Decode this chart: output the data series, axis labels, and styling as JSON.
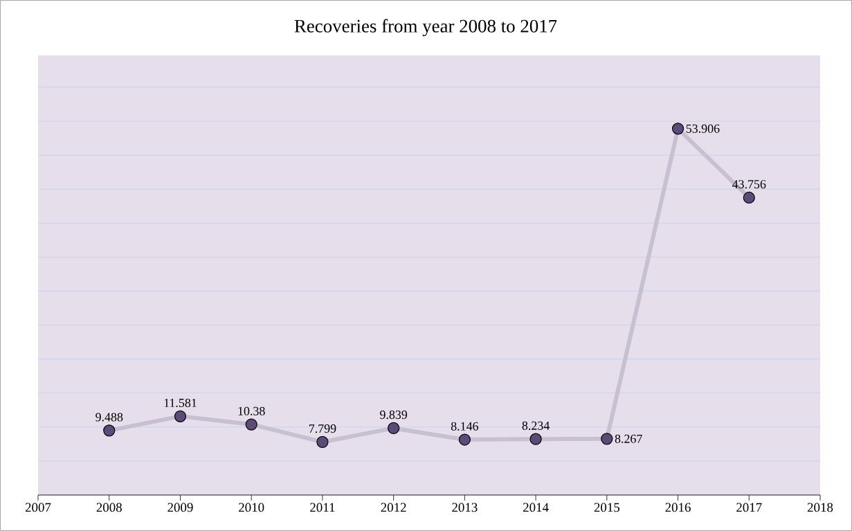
{
  "chart_data": {
    "type": "line",
    "title": "Recoveries from year 2008 to 2017",
    "x": [
      2008,
      2009,
      2010,
      2011,
      2012,
      2013,
      2014,
      2015,
      2016,
      2017
    ],
    "series": [
      {
        "color": "#5c4a78",
        "values": [
          9.488,
          11.581,
          10.38,
          7.799,
          9.839,
          8.146,
          8.234,
          8.267,
          53.906,
          43.756
        ]
      }
    ],
    "data_labels": true,
    "xlim": [
      2007,
      2018
    ],
    "xticks": [
      2007,
      2008,
      2009,
      2010,
      2011,
      2012,
      2013,
      2014,
      2015,
      2016,
      2017,
      2018
    ],
    "tick_labels": "x",
    "grid": "y",
    "marker": "circle",
    "line_style": "solid"
  }
}
